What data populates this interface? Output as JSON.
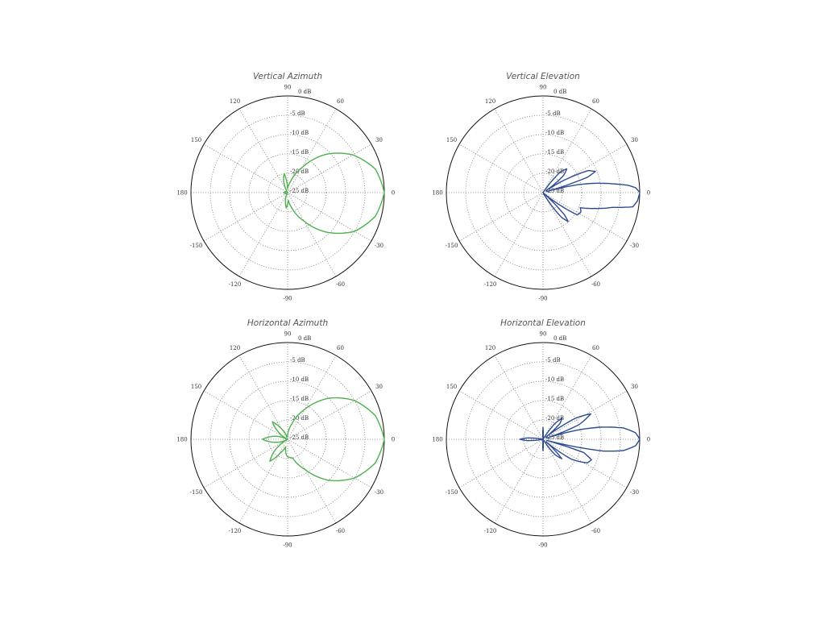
{
  "chart_data": [
    {
      "type": "polar",
      "title": "Vertical Azimuth",
      "theta_ticks": [
        "0",
        "30",
        "60",
        "90",
        "120",
        "150",
        "180",
        "-150",
        "-120",
        "-90",
        "-60",
        "-30"
      ],
      "r_ticks": [
        "0 dB",
        "-5 dB",
        "-10 dB",
        "-15 dB",
        "-20 dB",
        "-25 dB"
      ],
      "r_range_db": [
        -25,
        0
      ],
      "color": "#4cb04c",
      "series": [
        {
          "name": "Vertical Azimuth",
          "points": [
            [
              0,
              0
            ],
            [
              15,
              -1.5
            ],
            [
              30,
              -5.5
            ],
            [
              45,
              -11
            ],
            [
              60,
              -17.5
            ],
            [
              75,
              -22
            ],
            [
              90,
              -24
            ],
            [
              100,
              -20
            ],
            [
              110,
              -22
            ],
            [
              120,
              -25
            ],
            [
              180,
              -24
            ],
            [
              -120,
              -25
            ],
            [
              -100,
              -22
            ],
            [
              -95,
              -21
            ],
            [
              -85,
              -23
            ],
            [
              -75,
              -21
            ],
            [
              -60,
              -16.5
            ],
            [
              -45,
              -10.5
            ],
            [
              -30,
              -5
            ],
            [
              -15,
              -1.5
            ]
          ]
        }
      ]
    },
    {
      "type": "polar",
      "title": "Vertical Elevation",
      "theta_ticks": [
        "0",
        "30",
        "60",
        "90",
        "120",
        "150",
        "180",
        "-150",
        "-120",
        "-90",
        "-60",
        "-30"
      ],
      "r_ticks": [
        "0 dB",
        "-5 dB",
        "-10 dB",
        "-15 dB",
        "-20 dB",
        "-25 dB"
      ],
      "r_range_db": [
        -25,
        0
      ],
      "color": "#2e4a94",
      "series": [
        {
          "name": "Vertical Elevation",
          "points": [
            [
              0,
              0
            ],
            [
              3,
              -1
            ],
            [
              5,
              -3
            ],
            [
              7,
              -6.5
            ],
            [
              10,
              -11
            ],
            [
              13,
              -16
            ],
            [
              16,
              -24
            ],
            [
              19,
              -13
            ],
            [
              22,
              -10.4
            ],
            [
              26,
              -12
            ],
            [
              30,
              -18
            ],
            [
              34,
              -24
            ],
            [
              40,
              -18
            ],
            [
              45,
              -16.3
            ],
            [
              50,
              -18
            ],
            [
              56,
              -25
            ],
            [
              180,
              -25
            ],
            [
              -60,
              -25
            ],
            [
              -53,
              -17
            ],
            [
              -49,
              -15.1
            ],
            [
              -46,
              -17
            ],
            [
              -42,
              -25
            ],
            [
              -38,
              -22
            ],
            [
              -33,
              -14.4
            ],
            [
              -27,
              -14
            ],
            [
              -22,
              -14.6
            ],
            [
              -17,
              -11
            ],
            [
              -12,
              -6.7
            ],
            [
              -9,
              -1.5
            ],
            [
              -5,
              -0.5
            ]
          ]
        }
      ]
    },
    {
      "type": "polar",
      "title": "Horizontal Azimuth",
      "theta_ticks": [
        "0",
        "30",
        "60",
        "90",
        "120",
        "150",
        "180",
        "-150",
        "-120",
        "-90",
        "-60",
        "-30"
      ],
      "r_ticks": [
        "0 dB",
        "-5 dB",
        "-10 dB",
        "-15 dB",
        "-20 dB",
        "-25 dB"
      ],
      "r_range_db": [
        -25,
        0
      ],
      "color": "#4cb04c",
      "series": [
        {
          "name": "Horizontal Azimuth",
          "points": [
            [
              0,
              0
            ],
            [
              15,
              -1.5
            ],
            [
              30,
              -5
            ],
            [
              45,
              -10
            ],
            [
              60,
              -16
            ],
            [
              75,
              -21
            ],
            [
              90,
              -24
            ],
            [
              105,
              -24.5
            ],
            [
              120,
              -22
            ],
            [
              131,
              -19
            ],
            [
              142,
              -22
            ],
            [
              155,
              -25
            ],
            [
              165,
              -22
            ],
            [
              180,
              -18.5
            ],
            [
              -165,
              -22
            ],
            [
              -150,
              -25
            ],
            [
              -140,
              -21
            ],
            [
              -129,
              -17.7
            ],
            [
              -118,
              -21
            ],
            [
              -105,
              -23
            ],
            [
              -95,
              -21
            ],
            [
              -90,
              -20.5
            ],
            [
              -75,
              -20
            ],
            [
              -60,
              -16
            ],
            [
              -45,
              -10
            ],
            [
              -30,
              -5
            ],
            [
              -15,
              -1.5
            ]
          ]
        }
      ]
    },
    {
      "type": "polar",
      "title": "Horizontal Elevation",
      "theta_ticks": [
        "0",
        "30",
        "60",
        "90",
        "120",
        "150",
        "180",
        "-150",
        "-120",
        "-90",
        "-60",
        "-30"
      ],
      "r_ticks": [
        "0 dB",
        "-5 dB",
        "-10 dB",
        "-15 dB",
        "-20 dB",
        "-25 dB"
      ],
      "r_range_db": [
        -25,
        0
      ],
      "color": "#2e4a94",
      "series": [
        {
          "name": "Horizontal Elevation",
          "points": [
            [
              0,
              0
            ],
            [
              4,
              -1
            ],
            [
              8,
              -4
            ],
            [
              12,
              -10
            ],
            [
              15,
              -16
            ],
            [
              18,
              -24
            ],
            [
              22,
              -15
            ],
            [
              28,
              -11
            ],
            [
              33,
              -15
            ],
            [
              38,
              -24
            ],
            [
              43,
              -19
            ],
            [
              48,
              -17.7
            ],
            [
              53,
              -20
            ],
            [
              58,
              -25
            ],
            [
              85,
              -25
            ],
            [
              90,
              -22
            ],
            [
              95,
              -25
            ],
            [
              170,
              -25
            ],
            [
              175,
              -21
            ],
            [
              180,
              -19
            ],
            [
              -175,
              -21
            ],
            [
              -170,
              -25
            ],
            [
              -95,
              -25
            ],
            [
              -90,
              -22
            ],
            [
              -85,
              -25
            ],
            [
              -58,
              -25
            ],
            [
              -52,
              -20
            ],
            [
              -46,
              -18
            ],
            [
              -40,
              -24
            ],
            [
              -35,
              -16
            ],
            [
              -28,
              -12
            ],
            [
              -23,
              -11.4
            ],
            [
              -18,
              -14
            ],
            [
              -16,
              -24
            ],
            [
              -14,
              -20
            ],
            [
              -11,
              -9
            ],
            [
              -8,
              -4
            ],
            [
              -4,
              -1
            ]
          ]
        }
      ]
    }
  ]
}
